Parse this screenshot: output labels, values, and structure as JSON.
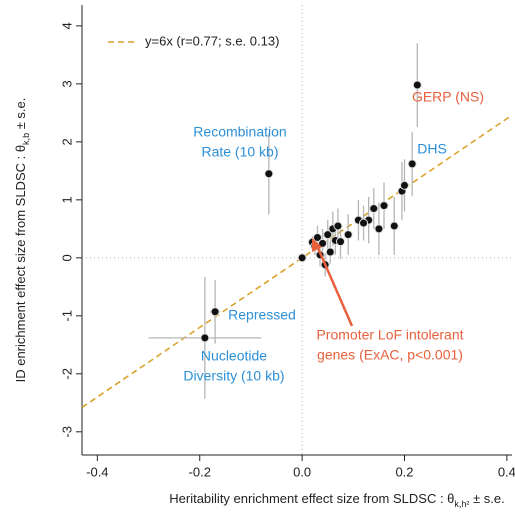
{
  "chart_data": {
    "type": "scatter",
    "xlabel": [
      "Heritability enrichment effect size from SLDSC : θ",
      "k,h²",
      " ± s.e."
    ],
    "ylabel": [
      "ID enrichment effect size from SLDSC : θ",
      "k,b",
      " ± s.e."
    ],
    "xlim": [
      -0.43,
      0.41
    ],
    "ylim": [
      -3.4,
      4.36
    ],
    "xticks": [
      -0.4,
      -0.2,
      {
        "value": 0,
        "label": "0.0"
      },
      0.2,
      0.4
    ],
    "yticks": [
      -3,
      -2,
      -1,
      0,
      1,
      2,
      3,
      4
    ],
    "fit": {
      "label": "y=6x (r=0.77; s.e. 0.13)",
      "slope": 6,
      "color": "#d9a22a"
    },
    "series": [
      {
        "color": "#111111",
        "errorbar_color": "#b5b5b5",
        "x": [
          0.225,
          0.215,
          -0.065,
          -0.17,
          -0.19,
          0,
          0.02,
          0.025,
          0.03,
          0.035,
          0.04,
          0.045,
          0.05,
          0.055,
          0.06,
          0.065,
          0.07,
          0.075,
          0.09,
          0.11,
          0.13,
          0.14,
          0.15,
          0.16,
          0.18,
          0.195,
          0.2,
          0.12
        ],
        "values": [
          2.98,
          1.62,
          1.45,
          -0.93,
          -1.38,
          0,
          0.27,
          0.2,
          0.35,
          0.05,
          0.25,
          -0.12,
          0.4,
          0.1,
          0.5,
          0.3,
          0.55,
          0.28,
          0.4,
          0.65,
          0.65,
          0.85,
          0.5,
          0.9,
          0.55,
          1.15,
          1.25,
          0.6
        ],
        "x_err": [
          0.004,
          0.004,
          0.003,
          0.01,
          0.11,
          0,
          0.005,
          0.005,
          0.005,
          0.005,
          0.005,
          0.005,
          0.005,
          0.005,
          0.005,
          0.005,
          0.005,
          0.005,
          0.005,
          0.005,
          0.005,
          0.005,
          0.005,
          0.005,
          0.005,
          0.005,
          0.005,
          0.005
        ],
        "y_err": [
          0.72,
          0.55,
          0.7,
          0.55,
          1.05,
          0,
          0.1,
          0.15,
          0.2,
          0.2,
          0.25,
          0.2,
          0.25,
          0.2,
          0.3,
          0.25,
          0.3,
          0.3,
          0.35,
          0.35,
          0.4,
          0.35,
          0.45,
          0.4,
          0.5,
          0.5,
          0.45,
          0.3
        ]
      }
    ],
    "annotations": [
      {
        "lines": [
          "GERP (NS)"
        ],
        "color": "#e8603c"
      },
      {
        "lines": [
          "DHS"
        ],
        "color": "#2b8fd6"
      },
      {
        "lines": [
          "Recombination",
          "Rate (10 kb)"
        ],
        "color": "#2b8fd6"
      },
      {
        "lines": [
          "Repressed"
        ],
        "color": "#2b8fd6"
      },
      {
        "lines": [
          "Nucleotide",
          "Diversity (10 kb)"
        ],
        "color": "#2b8fd6"
      },
      {
        "lines": [
          "Promoter LoF intolerant",
          "genes (ExAC, p<0.001)"
        ],
        "color": "#e8603c"
      }
    ]
  }
}
